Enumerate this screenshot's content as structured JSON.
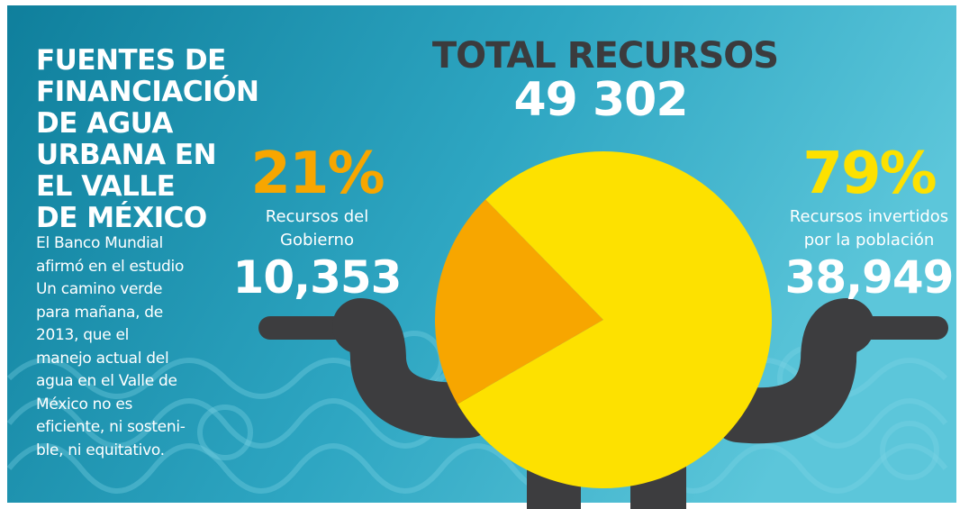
{
  "chart_data": {
    "type": "pie",
    "title_lines": [
      "FUENTES DE",
      "FINANCIACIÓN",
      "DE AGUA",
      "URBANA EN",
      "EL VALLE",
      "DE MÉXICO"
    ],
    "description_lines": [
      "El Banco Mundial",
      "afirmó en el estudio",
      "Un camino verde",
      "para mañana, de",
      "2013, que el",
      "manejo actual del",
      "agua en el Valle de",
      "México no es",
      "eficiente, ni sosteni-",
      "ble, ni equitativo."
    ],
    "total_label": "TOTAL RECURSOS",
    "total": {
      "value": 49302,
      "label": "49 302"
    },
    "categories": [
      "Recursos del Gobierno",
      "Recursos invertidos por la población"
    ],
    "values": [
      21,
      79
    ],
    "value_labels": [
      "21%",
      "79%"
    ],
    "amounts": [
      {
        "value": 10353,
        "label": "10,353"
      },
      {
        "value": 38949,
        "label": "38,949"
      }
    ],
    "colors": [
      "#f7a600",
      "#fde100"
    ]
  }
}
